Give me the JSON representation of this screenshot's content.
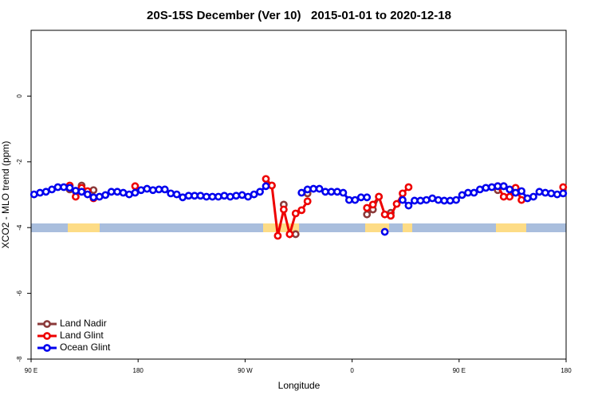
{
  "chart_data": {
    "type": "line",
    "title": "20S-15S December (Ver 10)   2015-01-01 to 2020-12-18",
    "xlabel": "Longitude",
    "ylabel": "XCO2 - MLO trend (ppm)",
    "xlim": [
      90,
      540
    ],
    "ylim": [
      -8,
      2
    ],
    "xticks": [
      {
        "value": 90,
        "label": "90 E"
      },
      180,
      {
        "value": 270,
        "label": "90 W"
      },
      {
        "value": 360,
        "label": "0"
      },
      {
        "value": 450,
        "label": "90 E"
      },
      {
        "value": 540,
        "label": "180"
      }
    ],
    "yticks": [
      -8,
      -6,
      -4,
      -2,
      0
    ],
    "legend": "bottom-left",
    "x": [
      92.5,
      97.5,
      102.5,
      107.5,
      112.5,
      117.5,
      122.5,
      127.5,
      132.5,
      137.5,
      142.5,
      147.5,
      152.5,
      157.5,
      162.5,
      167.5,
      172.5,
      177.5,
      182.5,
      187.5,
      192.5,
      197.5,
      202.5,
      207.5,
      212.5,
      217.5,
      222.5,
      227.5,
      232.5,
      237.5,
      242.5,
      247.5,
      252.5,
      257.5,
      262.5,
      267.5,
      272.5,
      277.5,
      282.5,
      287.5,
      292.5,
      297.5,
      302.5,
      307.5,
      312.5,
      317.5,
      322.5,
      327.5,
      332.5,
      337.5,
      342.5,
      347.5,
      352.5,
      357.5,
      362.5,
      367.5,
      372.5,
      377.5,
      382.5,
      387.5,
      392.5,
      397.5,
      402.5,
      407.5,
      412.5,
      417.5,
      422.5,
      427.5,
      432.5,
      437.5,
      442.5,
      447.5,
      452.5,
      457.5,
      462.5,
      467.5,
      472.5,
      477.5,
      482.5,
      487.5,
      492.5,
      497.5,
      502.5,
      507.5,
      512.5,
      517.5,
      522.5,
      527.5,
      532.5,
      537.5
    ],
    "series": [
      {
        "name": "Land Nadir",
        "color": "#8b3a3a",
        "values": [
          null,
          null,
          null,
          null,
          null,
          null,
          -2.84,
          null,
          -2.72,
          null,
          -2.86,
          null,
          null,
          null,
          null,
          null,
          null,
          null,
          null,
          null,
          null,
          null,
          null,
          null,
          null,
          null,
          null,
          null,
          null,
          null,
          null,
          null,
          null,
          null,
          null,
          null,
          null,
          null,
          null,
          null,
          -2.72,
          null,
          -3.3,
          null,
          -4.2,
          null,
          -2.96,
          null,
          null,
          null,
          null,
          null,
          null,
          null,
          null,
          null,
          -3.6,
          -3.45,
          -3.06,
          null,
          -3.55,
          null,
          null,
          null,
          null,
          null,
          null,
          null,
          null,
          null,
          null,
          null,
          null,
          null,
          null,
          null,
          null,
          null,
          -2.86,
          -2.74,
          null,
          -2.94,
          null,
          null,
          null,
          null,
          null,
          null,
          null,
          null
        ]
      },
      {
        "name": "Land Glint",
        "color": "#ee0000",
        "values": [
          null,
          null,
          null,
          null,
          null,
          null,
          -2.72,
          -3.06,
          -2.79,
          -2.89,
          -3.11,
          null,
          null,
          null,
          null,
          null,
          null,
          -2.74,
          null,
          null,
          null,
          null,
          null,
          null,
          null,
          null,
          null,
          null,
          null,
          null,
          null,
          null,
          null,
          null,
          null,
          null,
          null,
          null,
          null,
          -2.52,
          -2.72,
          -4.25,
          -3.45,
          -4.2,
          -3.57,
          -3.47,
          -3.2,
          null,
          null,
          null,
          null,
          null,
          null,
          null,
          null,
          null,
          -3.4,
          -3.3,
          -3.06,
          -3.6,
          -3.64,
          -3.28,
          -2.96,
          -2.77,
          null,
          null,
          null,
          null,
          null,
          null,
          null,
          null,
          null,
          null,
          null,
          null,
          null,
          null,
          -2.74,
          -3.06,
          -3.06,
          -2.79,
          -3.16,
          null,
          null,
          null,
          null,
          null,
          null,
          -2.77
        ]
      },
      {
        "name": "Ocean Glint",
        "color": "#0000ee",
        "values": [
          -2.99,
          -2.94,
          -2.91,
          -2.84,
          -2.77,
          -2.77,
          -2.79,
          -2.88,
          -2.91,
          -2.99,
          -3.08,
          -3.06,
          -3.01,
          -2.91,
          -2.91,
          -2.94,
          -2.99,
          -2.94,
          -2.86,
          -2.82,
          -2.86,
          -2.84,
          -2.84,
          -2.96,
          -2.99,
          -3.08,
          -3.03,
          -3.03,
          -3.03,
          -3.06,
          -3.06,
          -3.06,
          -3.03,
          -3.06,
          -3.03,
          -3.01,
          -3.06,
          -2.99,
          -2.91,
          -2.74,
          null,
          null,
          null,
          null,
          null,
          -2.94,
          -2.84,
          -2.82,
          -2.82,
          -2.91,
          -2.91,
          -2.91,
          -2.94,
          -3.16,
          -3.16,
          -3.08,
          -3.08,
          null,
          null,
          -4.13,
          null,
          null,
          -3.16,
          -3.33,
          -3.18,
          -3.18,
          -3.16,
          -3.11,
          -3.16,
          -3.18,
          -3.18,
          -3.16,
          -3.01,
          -2.94,
          -2.94,
          -2.84,
          -2.79,
          -2.77,
          -2.74,
          -2.74,
          -2.84,
          -2.94,
          -2.89,
          -3.11,
          -3.06,
          -2.91,
          -2.94,
          -2.96,
          -2.99,
          -2.96
        ]
      }
    ]
  }
}
